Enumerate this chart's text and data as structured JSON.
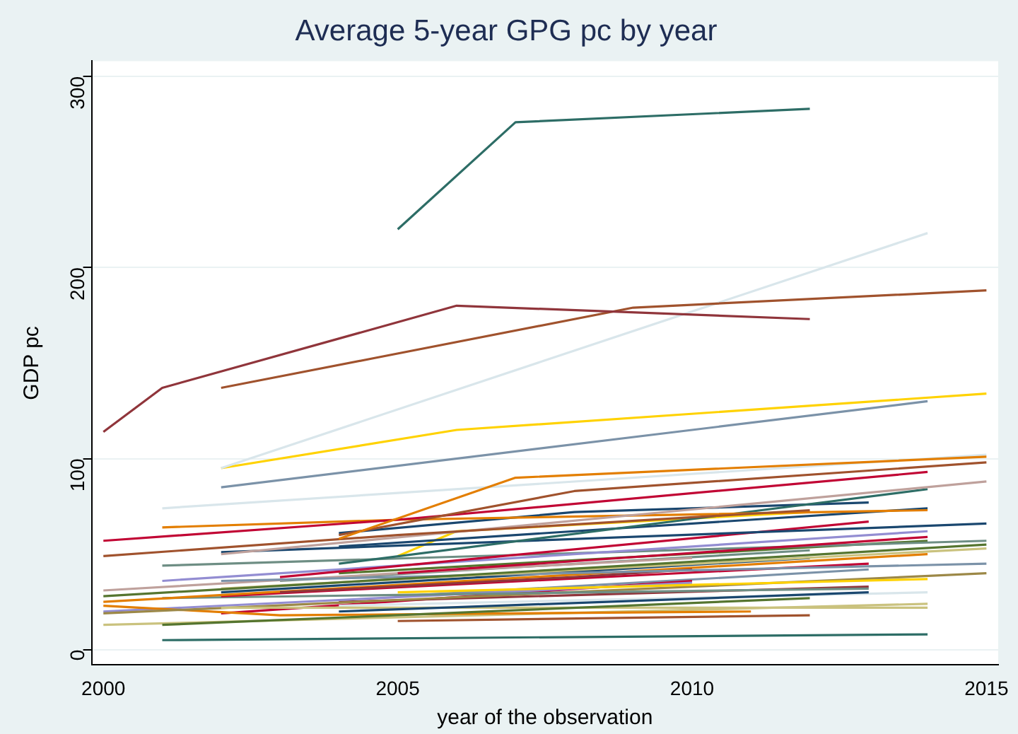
{
  "chart_data": {
    "type": "line",
    "title": "Average 5-year GPG pc by year",
    "xlabel": "year of the observation",
    "ylabel": "GDP pc",
    "xlim": [
      1999.8,
      2015.2
    ],
    "xticks": [
      2000,
      2005,
      2010,
      2015
    ],
    "ylim": [
      -8,
      308
    ],
    "yticks": [
      0,
      100,
      200,
      300
    ],
    "grid": "y",
    "legend": false,
    "marker": "none",
    "line_style": "solid",
    "series": [
      {
        "color": "#2d6d66",
        "x": [
          2005,
          2007,
          2012
        ],
        "values": [
          220,
          276,
          283
        ]
      },
      {
        "color": "#90353b",
        "x": [
          2000,
          2001,
          2006,
          2012
        ],
        "values": [
          114,
          137,
          180,
          173
        ]
      },
      {
        "color": "#a0522d",
        "x": [
          2002,
          2009,
          2015
        ],
        "values": [
          137,
          179,
          188
        ]
      },
      {
        "color": "#d9e6eb",
        "x": [
          2002,
          2014
        ],
        "values": [
          95,
          218
        ]
      },
      {
        "color": "#ffd200",
        "x": [
          2002,
          2006,
          2015
        ],
        "values": [
          95,
          115,
          134
        ]
      },
      {
        "color": "#7b92a8",
        "x": [
          2002,
          2014
        ],
        "values": [
          85,
          130
        ]
      },
      {
        "color": "#e37e00",
        "x": [
          2004,
          2007,
          2015
        ],
        "values": [
          58,
          90,
          101
        ]
      },
      {
        "color": "#d9e6eb",
        "x": [
          2001,
          2015
        ],
        "values": [
          74,
          102
        ]
      },
      {
        "color": "#a0522d",
        "x": [
          2004,
          2008,
          2015
        ],
        "values": [
          60,
          83,
          98
        ]
      },
      {
        "color": "#c10534",
        "x": [
          2000,
          2005,
          2014
        ],
        "values": [
          57,
          68,
          93
        ]
      },
      {
        "color": "#a0522d",
        "x": [
          2000,
          2005,
          2012
        ],
        "values": [
          49,
          60,
          73
        ]
      },
      {
        "color": "#bfa19c",
        "x": [
          2002,
          2015
        ],
        "values": [
          50,
          88
        ]
      },
      {
        "color": "#e37e00",
        "x": [
          2001,
          2005,
          2014
        ],
        "values": [
          64,
          68,
          73
        ]
      },
      {
        "color": "#2d6d66",
        "x": [
          2004,
          2014
        ],
        "values": [
          45,
          84
        ]
      },
      {
        "color": "#1a476f",
        "x": [
          2004,
          2008,
          2013
        ],
        "values": [
          61,
          72,
          77
        ]
      },
      {
        "color": "#1a476f",
        "x": [
          2002,
          2015
        ],
        "values": [
          51,
          66
        ]
      },
      {
        "color": "#1a476f",
        "x": [
          2004,
          2014
        ],
        "values": [
          54,
          74
        ]
      },
      {
        "color": "#c10534",
        "x": [
          2003,
          2013
        ],
        "values": [
          38,
          67
        ]
      },
      {
        "color": "#ffd200",
        "x": [
          2005,
          2006,
          2012
        ],
        "values": [
          49,
          62,
          72
        ]
      },
      {
        "color": "#938dd2",
        "x": [
          2001,
          2014
        ],
        "values": [
          36,
          62
        ]
      },
      {
        "color": "#c10534",
        "x": [
          2005,
          2014
        ],
        "values": [
          40,
          59
        ]
      },
      {
        "color": "#6e8e84",
        "x": [
          2001,
          2015
        ],
        "values": [
          44,
          57
        ]
      },
      {
        "color": "#55752f",
        "x": [
          2000,
          2015
        ],
        "values": [
          28,
          55
        ]
      },
      {
        "color": "#cac27e",
        "x": [
          2002,
          2015
        ],
        "values": [
          32,
          53
        ]
      },
      {
        "color": "#7b92a8",
        "x": [
          2002,
          2015
        ],
        "values": [
          36,
          45
        ]
      },
      {
        "color": "#90353b",
        "x": [
          2003,
          2008,
          2010
        ],
        "values": [
          30,
          38,
          42
        ]
      },
      {
        "color": "#e37e00",
        "x": [
          2000,
          2014
        ],
        "values": [
          25,
          50
        ]
      },
      {
        "color": "#c10534",
        "x": [
          2002,
          2013
        ],
        "values": [
          28,
          45
        ]
      },
      {
        "color": "#ffd200",
        "x": [
          2005,
          2014
        ],
        "values": [
          30,
          37
        ]
      },
      {
        "color": "#6e8e84",
        "x": [
          2001,
          2013
        ],
        "values": [
          27,
          32
        ]
      },
      {
        "color": "#1a476f",
        "x": [
          2004,
          2013
        ],
        "values": [
          20,
          30
        ]
      },
      {
        "color": "#55752f",
        "x": [
          2001,
          2012
        ],
        "values": [
          13,
          27
        ]
      },
      {
        "color": "#cac27e",
        "x": [
          2002,
          2014
        ],
        "values": [
          22,
          22
        ]
      },
      {
        "color": "#9c8847",
        "x": [
          2000,
          2015
        ],
        "values": [
          19,
          40
        ]
      },
      {
        "color": "#d9e6eb",
        "x": [
          2004,
          2014
        ],
        "values": [
          23,
          30
        ]
      },
      {
        "color": "#e37e00",
        "x": [
          2000,
          2003,
          2011
        ],
        "values": [
          23,
          18,
          20
        ]
      },
      {
        "color": "#a0522d",
        "x": [
          2005,
          2012
        ],
        "values": [
          15,
          18
        ]
      },
      {
        "color": "#2d6d66",
        "x": [
          2001,
          2014
        ],
        "values": [
          5,
          8
        ]
      },
      {
        "color": "#bfa19c",
        "x": [
          2000,
          2005,
          2010
        ],
        "values": [
          31,
          40,
          48
        ]
      },
      {
        "color": "#938dd2",
        "x": [
          2000,
          2010
        ],
        "values": [
          20,
          35
        ]
      },
      {
        "color": "#cac27e",
        "x": [
          2000,
          2014
        ],
        "values": [
          13,
          24
        ]
      },
      {
        "color": "#6e8e84",
        "x": [
          2003,
          2012
        ],
        "values": [
          36,
          52
        ]
      },
      {
        "color": "#1a476f",
        "x": [
          2002,
          2012
        ],
        "values": [
          30,
          48
        ]
      },
      {
        "color": "#55752f",
        "x": [
          2004,
          2014
        ],
        "values": [
          40,
          57
        ]
      },
      {
        "color": "#90353b",
        "x": [
          2004,
          2013
        ],
        "values": [
          25,
          33
        ]
      },
      {
        "color": "#c10534",
        "x": [
          2002,
          2010
        ],
        "values": [
          19,
          36
        ]
      },
      {
        "color": "#7b92a8",
        "x": [
          2005,
          2013
        ],
        "values": [
          28,
          42
        ]
      }
    ]
  }
}
